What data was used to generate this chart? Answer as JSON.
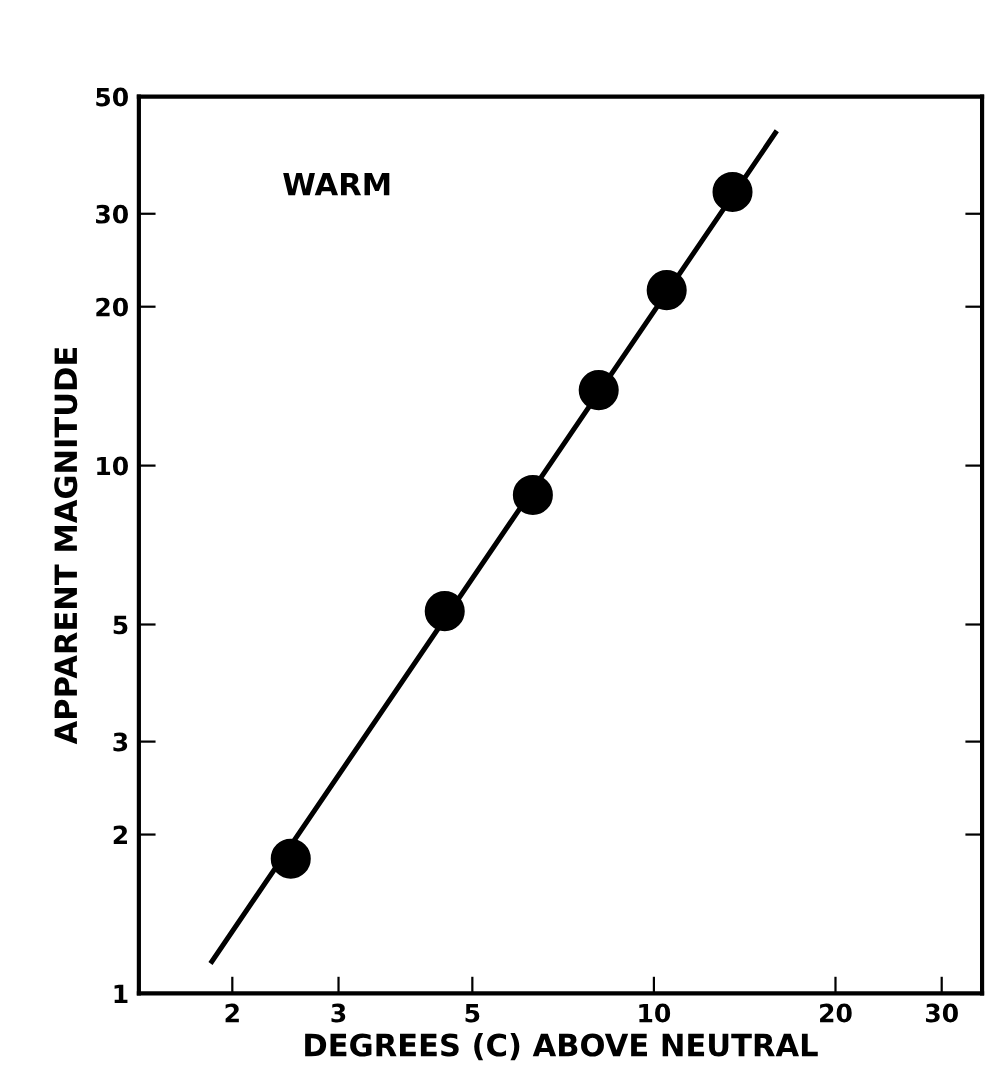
{
  "chart_data": {
    "type": "scatter",
    "xlabel": "DEGREES (C) ABOVE NEUTRAL",
    "ylabel": "APPARENT MAGNITUDE",
    "annotations": [
      "WARM"
    ],
    "log": "xy",
    "xlim": [
      1.4,
      35
    ],
    "ylim": [
      1,
      50
    ],
    "xticks": [
      2,
      3,
      5,
      10,
      20,
      30
    ],
    "yticks": [
      1,
      2,
      3,
      5,
      10,
      20,
      30,
      50
    ],
    "grid": false,
    "series": [
      {
        "marker": "circle",
        "color": "#000000",
        "x": [
          2.5,
          4.5,
          6.3,
          8.1,
          10.5,
          13.5
        ],
        "values": [
          1.8,
          5.3,
          8.8,
          13.9,
          21.5,
          33
        ]
      },
      {
        "type": "line",
        "color": "#000000",
        "x": [
          1.85,
          15.9
        ],
        "values": [
          1.15,
          42.7
        ],
        "line_style": "solid"
      }
    ]
  }
}
